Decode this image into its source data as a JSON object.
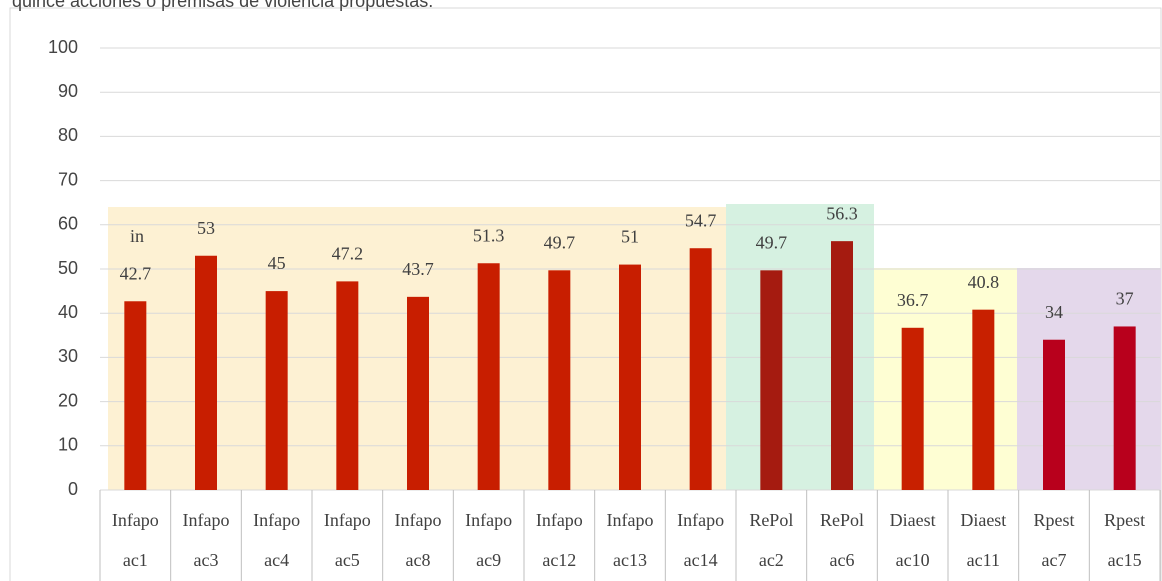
{
  "chart_data": {
    "type": "bar",
    "title": "quince acciones o premisas de violencia propuestas.",
    "annotation": "in",
    "categories": [
      [
        "Infapo",
        "ac1"
      ],
      [
        "Infapo",
        "ac3"
      ],
      [
        "Infapo",
        "ac4"
      ],
      [
        "Infapo",
        "ac5"
      ],
      [
        "Infapo",
        "ac8"
      ],
      [
        "Infapo",
        "ac9"
      ],
      [
        "Infapo",
        "ac12"
      ],
      [
        "Infapo",
        "ac13"
      ],
      [
        "Infapo",
        "ac14"
      ],
      [
        "RePol",
        "ac2"
      ],
      [
        "RePol",
        "ac6"
      ],
      [
        "Diaest",
        "ac10"
      ],
      [
        "Diaest",
        "ac11"
      ],
      [
        "Rpest",
        "ac7"
      ],
      [
        "Rpest",
        "ac15"
      ]
    ],
    "values": [
      42.7,
      53,
      45,
      47.2,
      43.7,
      51.3,
      49.7,
      51,
      54.7,
      49.7,
      56.3,
      36.7,
      40.8,
      34,
      37
    ],
    "colors": [
      "#c81e00",
      "#c81e00",
      "#c81e00",
      "#c81e00",
      "#c81e00",
      "#c81e00",
      "#c81e00",
      "#c81e00",
      "#c81e00",
      "#a51b10",
      "#a51b10",
      "#c82000",
      "#c82000",
      "#b8001c",
      "#b8001c"
    ],
    "ylim": [
      0,
      100
    ],
    "yticks": [
      0,
      10,
      20,
      30,
      40,
      50,
      60,
      70,
      80,
      90,
      100
    ],
    "grid": true
  }
}
